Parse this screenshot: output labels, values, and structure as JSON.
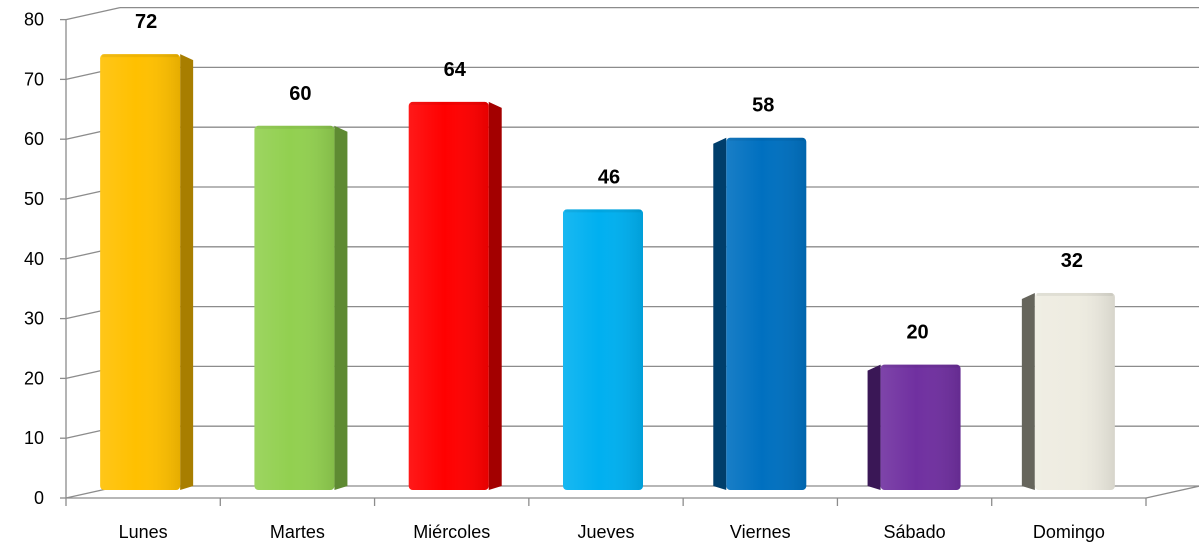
{
  "chart_data": {
    "type": "bar",
    "categories": [
      "Lunes",
      "Martes",
      "Miércoles",
      "Jueves",
      "Viernes",
      "Sábado",
      "Domingo"
    ],
    "values": [
      72,
      60,
      64,
      46,
      58,
      20,
      32
    ],
    "title": "",
    "xlabel": "",
    "ylabel": "",
    "ylim": [
      0,
      80
    ],
    "yticks": [
      0,
      10,
      20,
      30,
      40,
      50,
      60,
      70,
      80
    ],
    "grid": true,
    "legend": "none",
    "three_d": true,
    "colors": [
      "#FFC000",
      "#92D050",
      "#FF0000",
      "#00B0F0",
      "#0070C0",
      "#7030A0",
      "#EEECE1"
    ],
    "side_colors": [
      "#A87E00",
      "#5E8A32",
      "#A30000",
      "#0078A8",
      "#003E6B",
      "#3A1756",
      "#66655C"
    ]
  }
}
